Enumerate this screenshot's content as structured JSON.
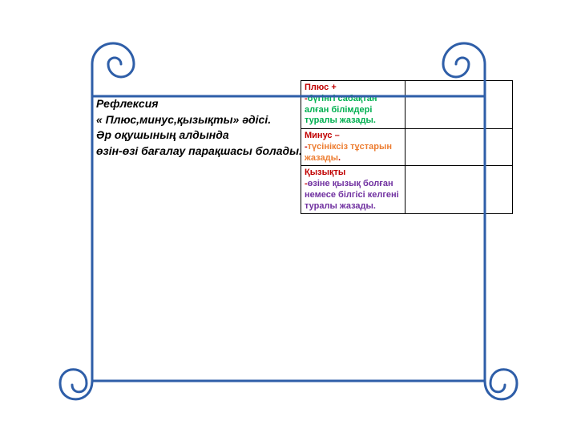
{
  "description": {
    "line1": "Рефлексия",
    "line2": "« Плюс,минус,қызықты» әдісі.",
    "line3": "Әр оқушының алдында",
    "line4": "өзін-өзі бағалау парақшасы болады."
  },
  "table": {
    "rows": [
      {
        "title": "Плюс +",
        "prefix": "-",
        "body": "бүгінгі сабақтан алған білімдері туралы жазады.",
        "title_color": "#c00000",
        "body_color": "#00b050",
        "dot": ""
      },
      {
        "title": "Минус –",
        "prefix": " -",
        "body": "түсініксіз тұстарын жазады",
        "title_color": "#c00000",
        "body_color": "#ed7d31",
        "dot": "."
      },
      {
        "title": "Қызықты",
        "prefix": "-",
        "body": "өзіне  қызық болған немесе білгісі келгені туралы жазады.",
        "title_color": "#c00000",
        "body_color": "#7030a0",
        "dot": ""
      }
    ]
  },
  "scroll": {
    "stroke": "#2e5ea8",
    "stroke_width": 3,
    "enabled": true
  },
  "typography": {
    "desc_fontsize": 14,
    "desc_weight": "bold",
    "desc_style": "italic",
    "table_fontsize": 11,
    "table_weight": "bold"
  },
  "background_color": "#ffffff"
}
